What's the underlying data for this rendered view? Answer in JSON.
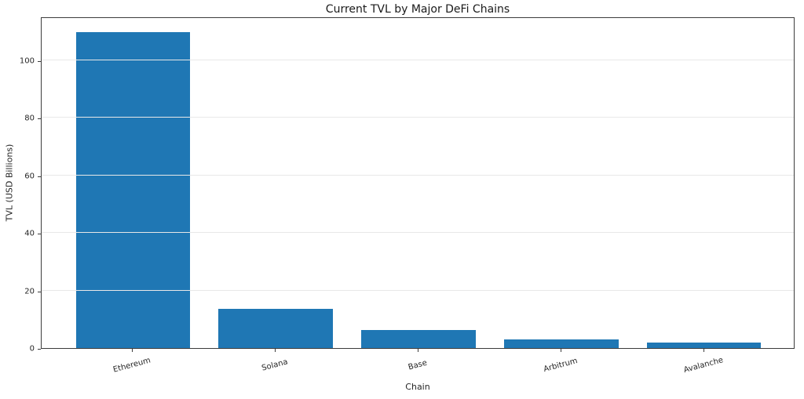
{
  "chart_data": {
    "type": "bar",
    "title": "Current TVL by Major DeFi Chains",
    "xlabel": "Chain",
    "ylabel": "TVL (USD Billions)",
    "categories": [
      "Ethereum",
      "Solana",
      "Base",
      "Arbitrum",
      "Avalanche"
    ],
    "values": [
      109.7,
      13.6,
      6.2,
      3.1,
      1.9
    ],
    "ylim": [
      0,
      115.2
    ],
    "yticks": [
      0,
      20,
      40,
      60,
      80,
      100
    ],
    "xtick_rotation_deg": 15,
    "grid": true,
    "grid_axis": "y",
    "legend": false,
    "colors": {
      "bar": "#1f77b4",
      "gridline": "#e8e8e8",
      "spine": "#3c3c3c",
      "text": "#262626",
      "background": "#ffffff"
    }
  }
}
